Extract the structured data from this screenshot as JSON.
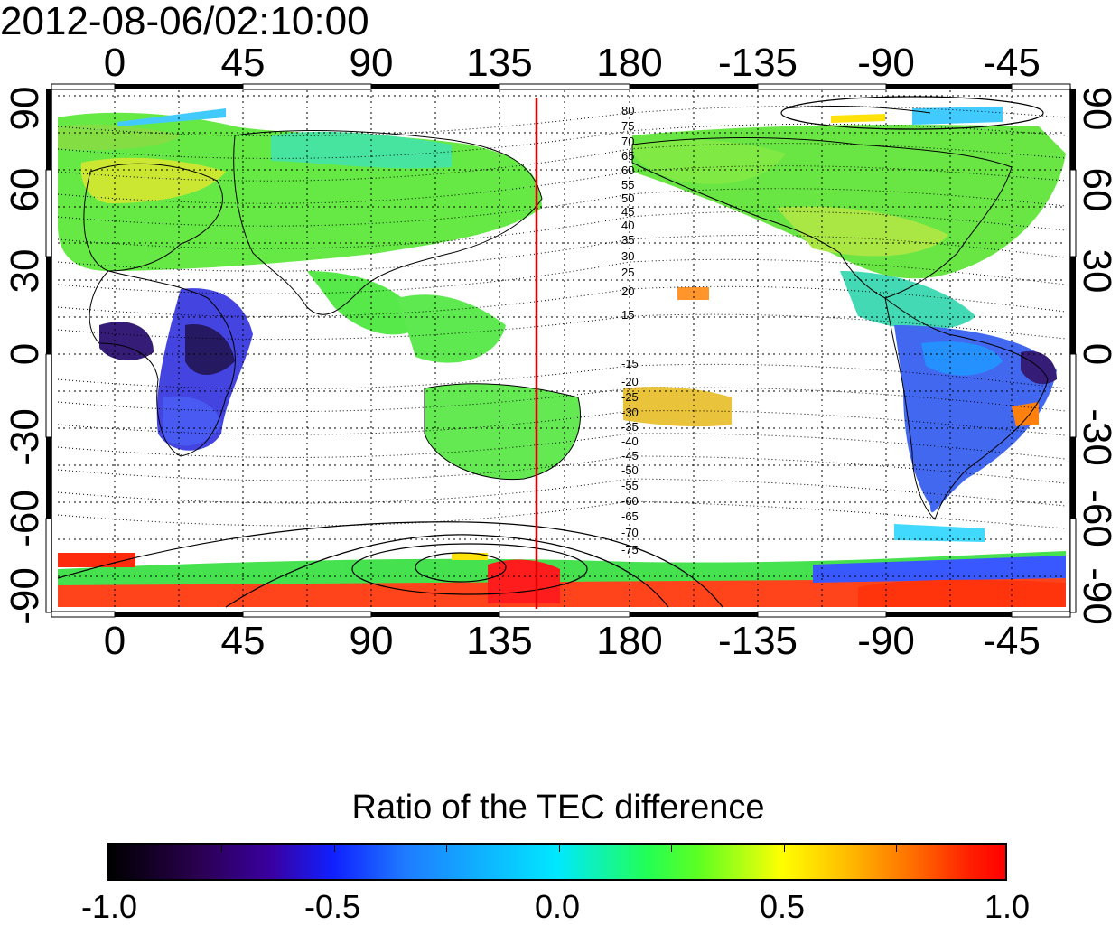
{
  "timestamp": "2012-08-06/02:10:00",
  "longitude_ticks_top": [
    "0",
    "45",
    "90",
    "135",
    "180",
    "-135",
    "-90",
    "-45"
  ],
  "longitude_ticks_bottom": [
    "0",
    "45",
    "90",
    "135",
    "180",
    "-135",
    "-90",
    "-45"
  ],
  "latitude_ticks_left": [
    "90",
    "60",
    "30",
    "0",
    "-30",
    "-60",
    "-90"
  ],
  "latitude_ticks_right": [
    "90",
    "60",
    "30",
    "0",
    "-30",
    "-60",
    "-90"
  ],
  "contour_labels_north": [
    "80",
    "75",
    "70",
    "65",
    "60",
    "55",
    "50",
    "45",
    "40",
    "35",
    "30",
    "25",
    "20",
    "15"
  ],
  "contour_labels_south": [
    "-15",
    "-20",
    "-25",
    "-30",
    "-35",
    "-40",
    "-45",
    "-50",
    "-55",
    "-60",
    "-65",
    "-70",
    "-75"
  ],
  "colorbar": {
    "title": "Ratio of the TEC difference",
    "tick_labels": [
      "-1.0",
      "-0.5",
      "0.0",
      "0.5",
      "1.0"
    ],
    "range": [
      -1.0,
      1.0
    ]
  },
  "terminator_longitude": 147,
  "colors": {
    "terminator_line": "#e00000",
    "grid": "#000000"
  }
}
